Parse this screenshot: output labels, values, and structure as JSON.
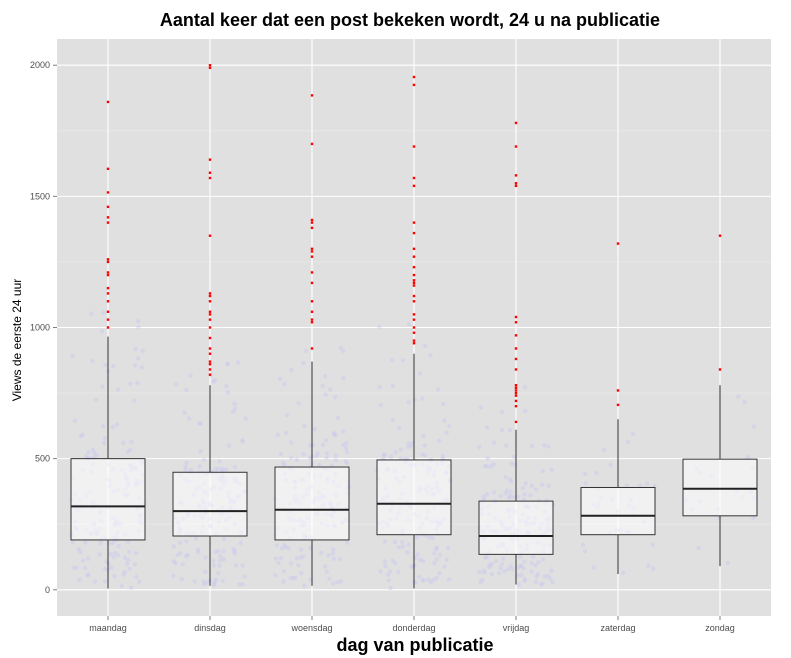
{
  "chart_data": {
    "type": "box",
    "title": "Aantal keer dat een post bekeken wordt, 24 u na publicatie",
    "xlabel": "dag van publicatie",
    "ylabel": "Views de eerste 24 uur",
    "ylim": [
      -100,
      2100
    ],
    "yticks": [
      0,
      500,
      1000,
      1500,
      2000
    ],
    "grid": true,
    "background_color": "#e0e0e0",
    "gridline_color": "#ffffff",
    "outlier_color": "#ff0000",
    "jitter_color": "#c8c8f0",
    "categories": [
      "maandag",
      "dinsdag",
      "woensdag",
      "donderdag",
      "vrijdag",
      "zaterdag",
      "zondag"
    ],
    "boxes": [
      {
        "category": "maandag",
        "whisker_low": 5,
        "q1": 190,
        "median": 318,
        "q3": 500,
        "whisker_high": 965,
        "outliers": [
          1000,
          1030,
          1060,
          1100,
          1130,
          1150,
          1200,
          1210,
          1250,
          1260,
          1400,
          1420,
          1460,
          1515,
          1605,
          1860
        ]
      },
      {
        "category": "dinsdag",
        "whisker_low": 15,
        "q1": 205,
        "median": 300,
        "q3": 448,
        "whisker_high": 780,
        "outliers": [
          820,
          840,
          860,
          870,
          900,
          920,
          960,
          1000,
          1030,
          1050,
          1060,
          1100,
          1120,
          1130,
          1350,
          1570,
          1590,
          1640,
          1990,
          2000
        ]
      },
      {
        "category": "woensdag",
        "whisker_low": 15,
        "q1": 190,
        "median": 305,
        "q3": 468,
        "whisker_high": 870,
        "outliers": [
          920,
          1020,
          1030,
          1060,
          1100,
          1170,
          1210,
          1270,
          1290,
          1300,
          1380,
          1400,
          1410,
          1700,
          1885
        ]
      },
      {
        "category": "donderdag",
        "whisker_low": 5,
        "q1": 210,
        "median": 328,
        "q3": 495,
        "whisker_high": 900,
        "outliers": [
          940,
          950,
          980,
          1000,
          1030,
          1050,
          1100,
          1120,
          1160,
          1170,
          1180,
          1200,
          1230,
          1270,
          1300,
          1360,
          1400,
          1540,
          1570,
          1690,
          1925,
          1955
        ]
      },
      {
        "category": "vrijdag",
        "whisker_low": 20,
        "q1": 135,
        "median": 205,
        "q3": 338,
        "whisker_high": 610,
        "outliers": [
          640,
          700,
          720,
          740,
          750,
          760,
          770,
          780,
          840,
          880,
          920,
          970,
          1020,
          1040,
          1540,
          1550,
          1580,
          1690,
          1780
        ]
      },
      {
        "category": "zaterdag",
        "whisker_low": 60,
        "q1": 210,
        "median": 282,
        "q3": 390,
        "whisker_high": 650,
        "outliers": [
          705,
          760,
          1320
        ]
      },
      {
        "category": "zondag",
        "whisker_low": 90,
        "q1": 282,
        "median": 385,
        "q3": 498,
        "whisker_high": 780,
        "outliers": [
          840,
          1350
        ]
      }
    ]
  }
}
